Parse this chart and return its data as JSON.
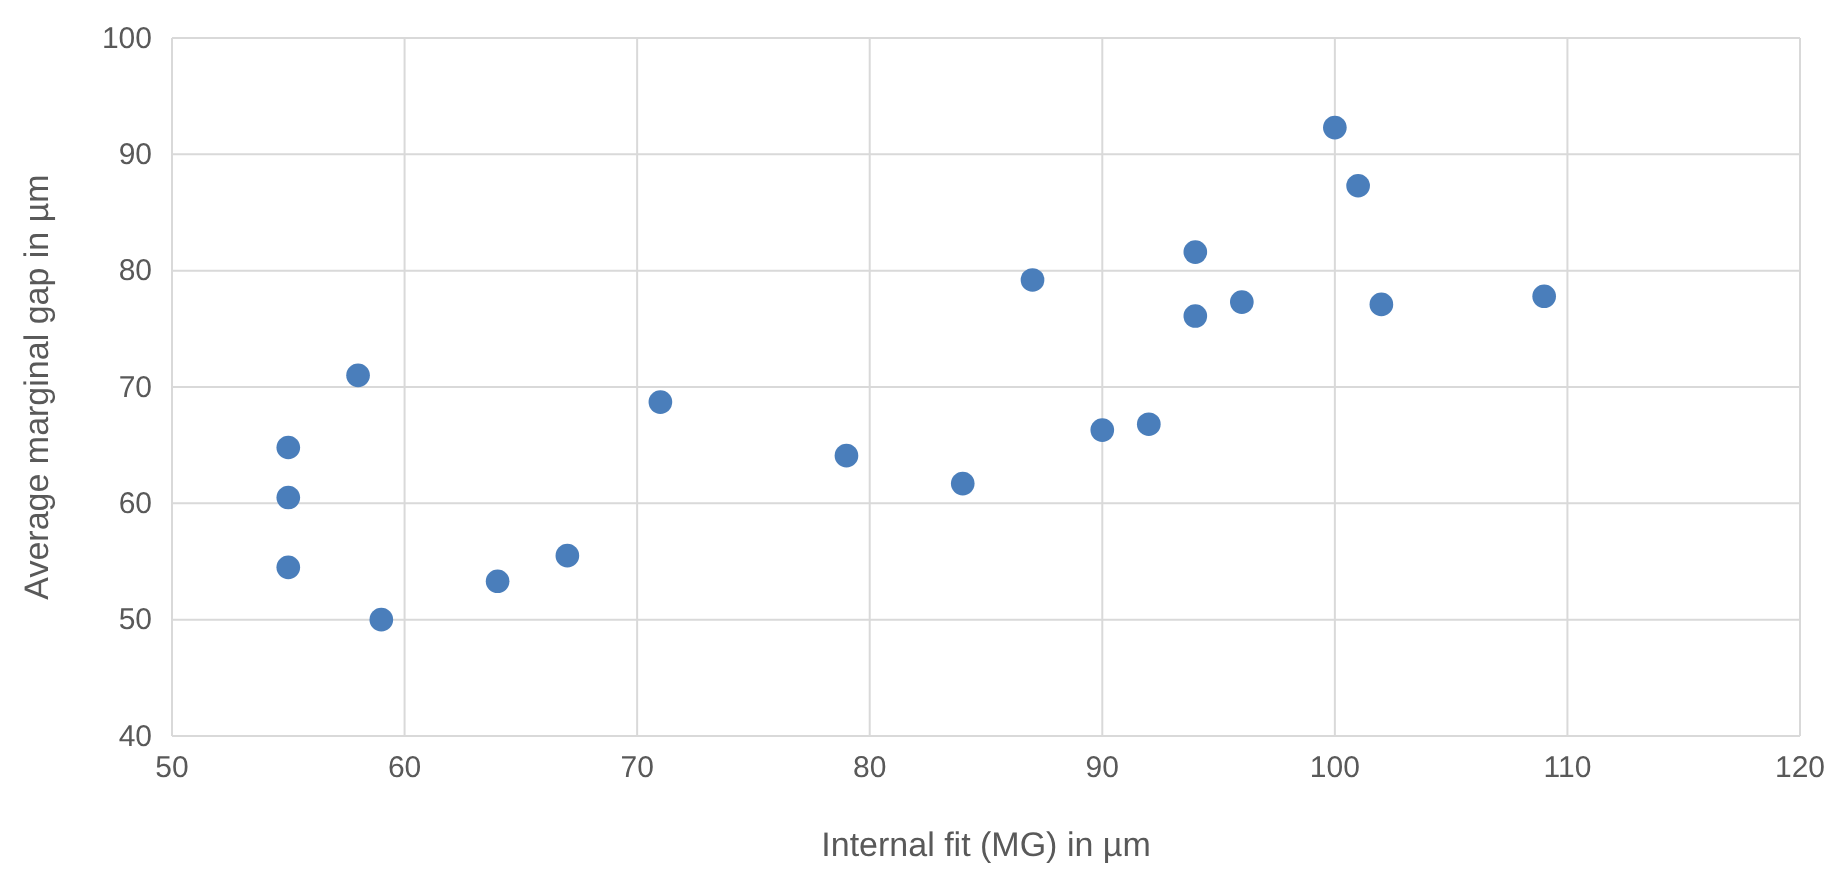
{
  "chart_data": {
    "type": "scatter",
    "xlabel": "Internal fit (MG) in µm",
    "ylabel": "Average marginal gap in µm",
    "x": [
      55,
      55,
      55,
      58,
      59,
      64,
      67,
      71,
      79,
      84,
      87,
      90,
      92,
      94,
      94,
      96,
      100,
      101,
      102,
      109
    ],
    "series": [
      {
        "color": "#4a7ebb",
        "values": [
          64.8,
          60.5,
          54.5,
          71.0,
          50.0,
          53.3,
          55.5,
          68.7,
          64.1,
          61.7,
          79.2,
          66.3,
          66.8,
          81.6,
          76.1,
          77.3,
          92.3,
          87.3,
          77.1,
          77.8
        ]
      }
    ],
    "xlim": [
      50,
      120
    ],
    "xticks": [
      50,
      60,
      70,
      80,
      90,
      100,
      110,
      120
    ],
    "ylim": [
      40,
      100
    ],
    "yticks": [
      40,
      50,
      60,
      70,
      80,
      90,
      100
    ],
    "grid": true,
    "marker": "circle"
  }
}
